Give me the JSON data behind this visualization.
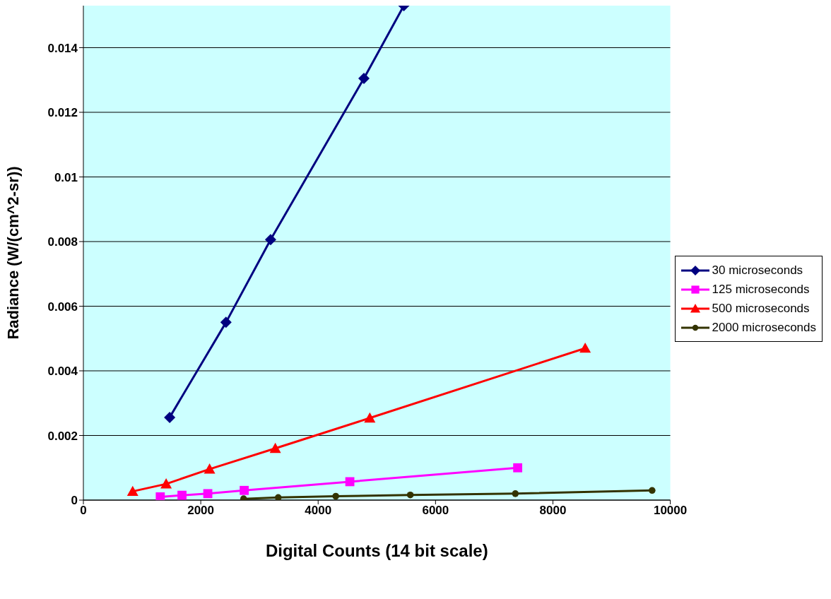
{
  "chart_data": {
    "type": "line",
    "xlabel": "Digital Counts (14 bit scale)",
    "ylabel": "Radiance (W/(cm^2-sr))",
    "xlim": [
      0,
      10000
    ],
    "xticks": [
      0,
      2000,
      4000,
      6000,
      8000,
      10000
    ],
    "ylim": [
      0,
      0.0153
    ],
    "yticks": [
      0,
      0.002,
      0.004,
      0.006,
      0.008,
      0.01,
      0.012,
      0.014
    ],
    "grid": "y",
    "legend": "right",
    "series": [
      {
        "name": "30 microseconds",
        "color": "#000080",
        "marker": "diamond",
        "x": [
          1470,
          2430,
          3190,
          4780,
          5460
        ],
        "values": [
          0.00256,
          0.0055,
          0.00806,
          0.01305,
          0.0153
        ]
      },
      {
        "name": "125 microseconds",
        "color": "#ff00ff",
        "marker": "square",
        "x": [
          1310,
          1680,
          2120,
          2740,
          4540,
          7400
        ],
        "values": [
          0.0001,
          0.00015,
          0.0002,
          0.0003,
          0.00057,
          0.001
        ]
      },
      {
        "name": "500 microseconds",
        "color": "#ff0000",
        "marker": "triangle",
        "x": [
          840,
          1410,
          2150,
          3270,
          4880,
          8550
        ],
        "values": [
          0.00027,
          0.0005,
          0.00096,
          0.0016,
          0.00254,
          0.0047
        ]
      },
      {
        "name": "2000 microseconds",
        "color": "#333300",
        "marker": "circle",
        "x": [
          2730,
          3320,
          4300,
          5570,
          7360,
          9690
        ],
        "values": [
          4e-05,
          8e-05,
          0.00012,
          0.00016,
          0.0002,
          0.0003
        ]
      }
    ]
  }
}
